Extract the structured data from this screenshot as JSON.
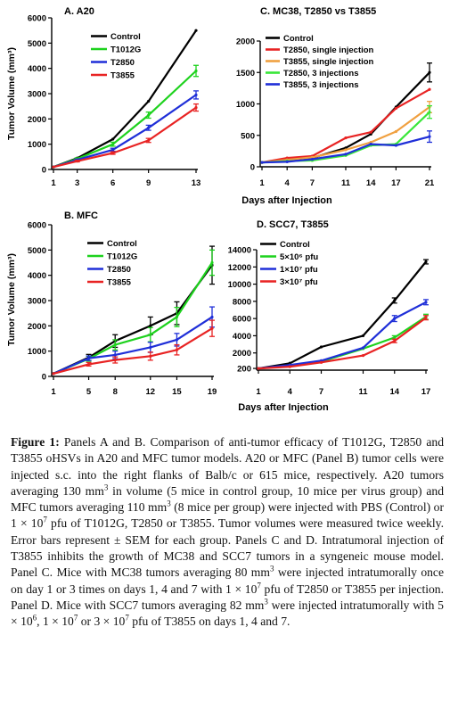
{
  "figure": {
    "shared_x_label": "Days after Injection",
    "shared_y_label": "Tumor Volume (mm³)"
  },
  "colors": {
    "Control": "#000000",
    "T1012G": "#1ed21e",
    "T2850": "#1f2fd8",
    "T3855": "#e82323",
    "T2850, single injection": "#e82323",
    "T3855, single injection": "#f0a040",
    "T2850, 3 injections": "#39e639",
    "T3855, 3 injections": "#1f2fd8",
    "5×10⁶ pfu": "#1ed21e",
    "1×10⁷ pfu": "#1f2fd8",
    "3×10⁷ pfu": "#e82323"
  },
  "chart_data": [
    {
      "id": "A",
      "type": "line",
      "title": "A. A20",
      "xlabel": "",
      "ylabel": "Tumor Volume (mm³)",
      "x": [
        1,
        3,
        6,
        9,
        13
      ],
      "x_ticks": [
        1,
        3,
        6,
        9,
        13
      ],
      "ylim": [
        0,
        6000
      ],
      "y_ticks": [
        0,
        1000,
        2000,
        3000,
        4000,
        5000,
        6000
      ],
      "legend": "top-left",
      "grid": false,
      "series": [
        {
          "name": "Control",
          "values": [
            100,
            450,
            1200,
            2700,
            5500
          ]
        },
        {
          "name": "T1012G",
          "values": [
            100,
            420,
            1000,
            2150,
            3900
          ],
          "err": [
            0,
            40,
            80,
            120,
            220
          ]
        },
        {
          "name": "T2850",
          "values": [
            100,
            380,
            780,
            1650,
            2950
          ],
          "err": [
            0,
            30,
            60,
            100,
            160
          ]
        },
        {
          "name": "T3855",
          "values": [
            100,
            330,
            650,
            1150,
            2450
          ],
          "err": [
            0,
            30,
            50,
            80,
            140
          ]
        }
      ]
    },
    {
      "id": "C",
      "type": "line",
      "title": "C. MC38, T2850 vs T3855",
      "xlabel": "Days after Injection",
      "ylabel": "",
      "x": [
        1,
        4,
        7,
        11,
        14,
        17,
        21
      ],
      "x_ticks": [
        1,
        4,
        7,
        11,
        14,
        17,
        21
      ],
      "ylim": [
        0,
        2000
      ],
      "y_ticks": [
        0,
        500,
        1000,
        1500,
        2000
      ],
      "legend": "top-left",
      "grid": false,
      "series": [
        {
          "name": "Control",
          "values": [
            70,
            100,
            140,
            300,
            520,
            950,
            1500
          ],
          "err": [
            0,
            0,
            0,
            0,
            0,
            0,
            150
          ]
        },
        {
          "name": "T2850, single injection",
          "values": [
            70,
            140,
            170,
            460,
            550,
            930,
            1230
          ]
        },
        {
          "name": "T3855, single injection",
          "values": [
            70,
            110,
            150,
            270,
            390,
            560,
            950
          ],
          "err": [
            0,
            0,
            0,
            0,
            0,
            0,
            90
          ]
        },
        {
          "name": "T2850, 3 injections",
          "values": [
            70,
            90,
            100,
            180,
            340,
            360,
            870
          ],
          "err": [
            0,
            0,
            0,
            0,
            0,
            0,
            100
          ]
        },
        {
          "name": "T3855, 3 injections",
          "values": [
            70,
            80,
            120,
            200,
            360,
            340,
            480
          ],
          "err": [
            0,
            0,
            0,
            0,
            0,
            0,
            90
          ]
        }
      ]
    },
    {
      "id": "B",
      "type": "line",
      "title": "B. MFC",
      "xlabel": "",
      "ylabel": "Tumor Volume (mm³)",
      "x": [
        1,
        5,
        8,
        12,
        15,
        19
      ],
      "x_ticks": [
        1,
        5,
        8,
        12,
        15,
        19
      ],
      "ylim": [
        0,
        6000
      ],
      "y_ticks": [
        0,
        1000,
        2000,
        3000,
        4000,
        5000,
        6000
      ],
      "legend": "top-left",
      "grid": false,
      "series": [
        {
          "name": "Control",
          "values": [
            110,
            750,
            1400,
            2000,
            2500,
            4400
          ],
          "err": [
            0,
            120,
            250,
            350,
            450,
            750
          ]
        },
        {
          "name": "T1012G",
          "values": [
            110,
            700,
            1250,
            1650,
            2350,
            4500
          ],
          "err": [
            0,
            100,
            200,
            280,
            380,
            500
          ]
        },
        {
          "name": "T2850",
          "values": [
            110,
            720,
            850,
            1150,
            1450,
            2350
          ],
          "err": [
            0,
            90,
            150,
            200,
            250,
            400
          ]
        },
        {
          "name": "T3855",
          "values": [
            110,
            480,
            650,
            800,
            1050,
            1900
          ],
          "err": [
            0,
            70,
            120,
            160,
            200,
            320
          ]
        }
      ]
    },
    {
      "id": "D",
      "type": "line",
      "title": "D. SCC7, T3855",
      "xlabel": "Days after Injection",
      "ylabel": "",
      "x": [
        1,
        4,
        7,
        11,
        14,
        17
      ],
      "x_ticks": [
        1,
        4,
        7,
        11,
        14,
        17
      ],
      "ylim": [
        0,
        14000
      ],
      "y_ticks": [
        200,
        2000,
        4000,
        6000,
        8000,
        10000,
        12000,
        14000
      ],
      "legend": "top-left",
      "grid": false,
      "series": [
        {
          "name": "Control",
          "values": [
            200,
            800,
            2700,
            4000,
            8100,
            12600
          ],
          "err": [
            0,
            0,
            0,
            0,
            300,
            250
          ]
        },
        {
          "name": "5×10⁶ pfu",
          "values": [
            200,
            500,
            1000,
            2500,
            3800,
            6200
          ],
          "err": [
            0,
            0,
            0,
            0,
            200,
            300
          ]
        },
        {
          "name": "1×10⁷ pfu",
          "values": [
            200,
            600,
            1100,
            2600,
            6000,
            7900
          ],
          "err": [
            0,
            0,
            0,
            0,
            350,
            300
          ]
        },
        {
          "name": "3×10⁷ pfu",
          "values": [
            200,
            400,
            900,
            1700,
            3400,
            6100
          ],
          "err": [
            0,
            0,
            0,
            0,
            200,
            250
          ]
        }
      ]
    }
  ],
  "caption": {
    "label": "Figure 1:",
    "segments": [
      {
        "t": " Panels A and B. Comparison of anti-tumor efficacy of T1012G, T2850 and T3855 oHSVs in A20 and MFC tumor models. A20 or MFC (Panel B) tumor cells were injected s.c. into the right flanks of Balb/c or 615 mice, respectively. A20 tumors averaging 130 mm"
      },
      {
        "t": "3",
        "sup": true
      },
      {
        "t": " in volume (5 mice in control group, 10 mice per virus group) and MFC tumors averaging 110 mm"
      },
      {
        "t": "3",
        "sup": true
      },
      {
        "t": " (8 mice per group) were injected with PBS (Control) or 1 × 10"
      },
      {
        "t": "7",
        "sup": true
      },
      {
        "t": " pfu of T1012G, T2850 or T3855. Tumor volumes were measured twice weekly. Error bars represent ± SEM for each group. Panels C and D. Intratumoral injection of T3855 inhibits the growth of MC38 and SCC7 tumors in a syngeneic mouse model. Panel C. Mice with MC38 tumors averaging 80 mm"
      },
      {
        "t": "3",
        "sup": true
      },
      {
        "t": " were injected intratumorally once on day 1 or 3 times on days 1, 4 and 7 with 1 × 10"
      },
      {
        "t": "7",
        "sup": true
      },
      {
        "t": " pfu of T2850 or T3855 per injection. Panel D. Mice with SCC7 tumors averaging 82 mm"
      },
      {
        "t": "3",
        "sup": true
      },
      {
        "t": "  were injected intratumorally with 5 × 10"
      },
      {
        "t": "6",
        "sup": true
      },
      {
        "t": ", 1 × 10"
      },
      {
        "t": "7",
        "sup": true
      },
      {
        "t": " or 3 × 10"
      },
      {
        "t": "7",
        "sup": true
      },
      {
        "t": " pfu of T3855 on days 1, 4 and 7."
      }
    ]
  }
}
